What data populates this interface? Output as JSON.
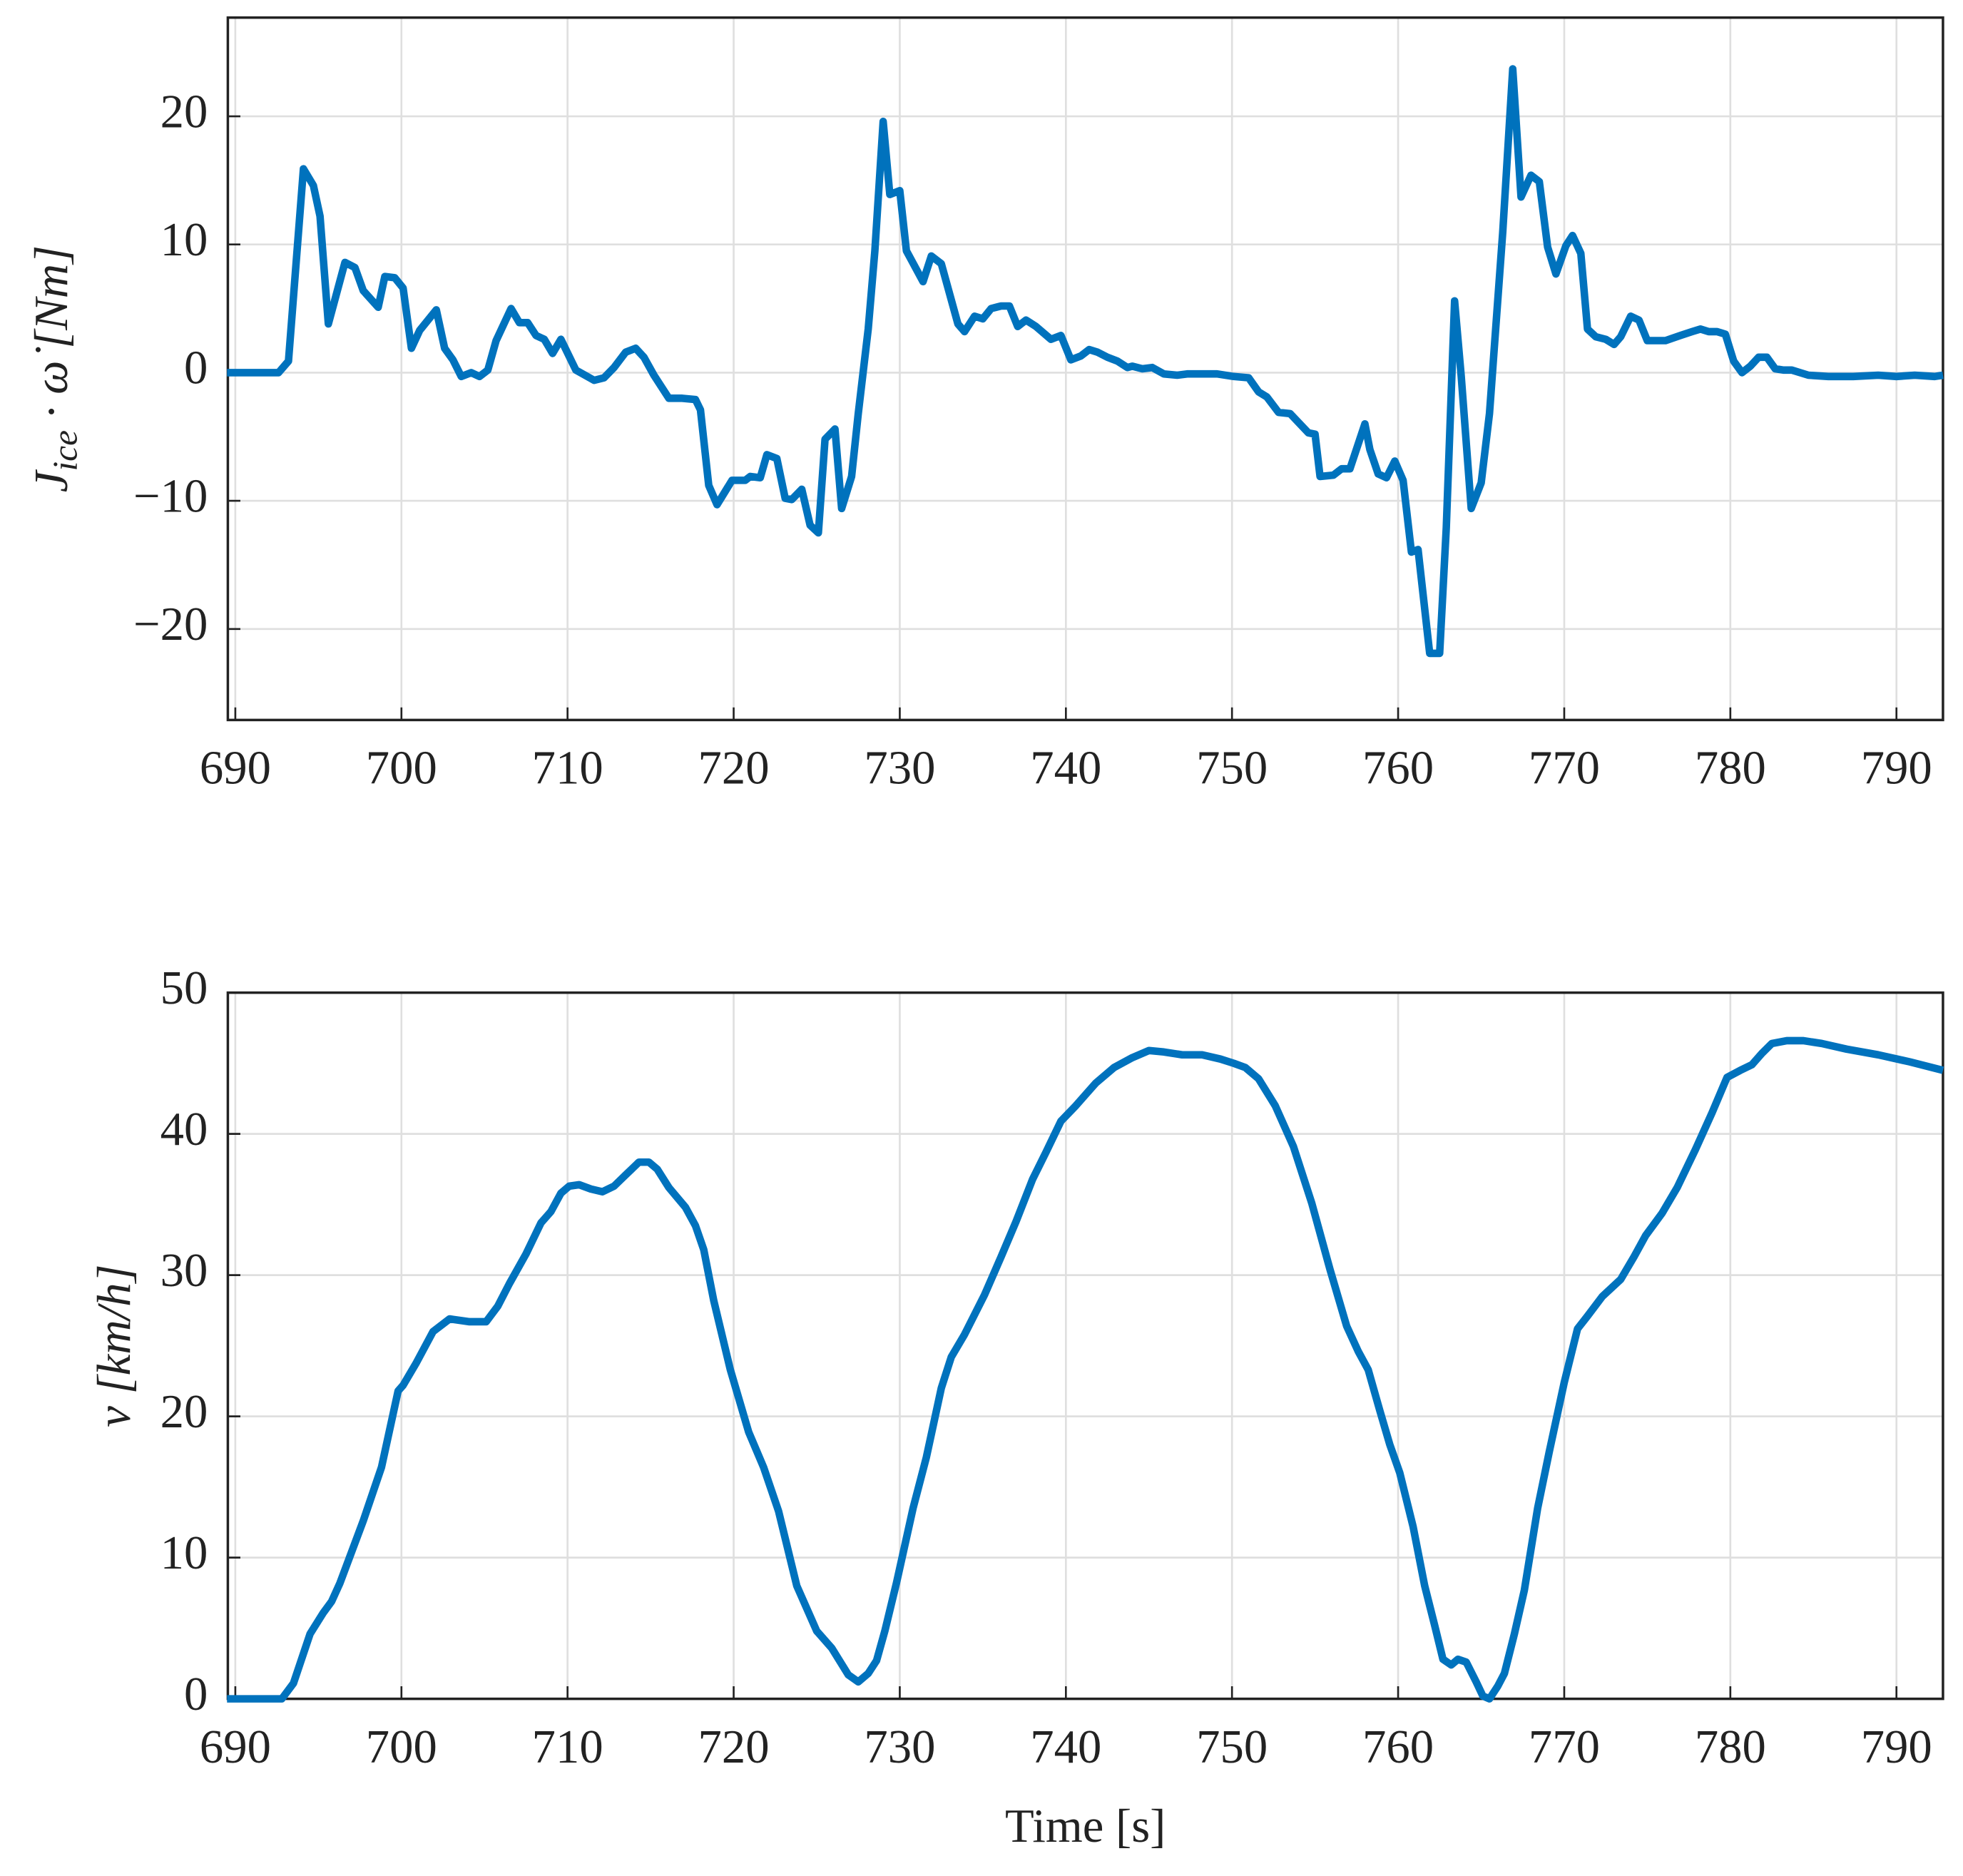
{
  "chart_data": [
    {
      "type": "line",
      "color": "#0072bd",
      "grid": true,
      "ylabel": [
        "J",
        "ice",
        " · ω̇ [Nm]"
      ],
      "xlim": [
        689.55,
        792.8
      ],
      "ylim": [
        -27.1,
        27.7
      ],
      "xticks": [
        690,
        700,
        710,
        720,
        730,
        740,
        750,
        760,
        770,
        780,
        790
      ],
      "yticks": [
        {
          "value": -20,
          "label": "−20"
        },
        {
          "value": -10,
          "label": "−10"
        },
        0,
        10,
        20
      ],
      "x": [
        689.5,
        692.6,
        693.2,
        694.1,
        694.7,
        695.1,
        695.6,
        696.6,
        697.2,
        697.7,
        698.6,
        699.0,
        699.6,
        700.1,
        700.6,
        701.1,
        702.1,
        702.6,
        703.1,
        703.6,
        704.2,
        704.7,
        705.2,
        705.7,
        706.6,
        707.1,
        707.6,
        708.1,
        708.6,
        709.1,
        709.6,
        710.5,
        711.6,
        712.2,
        712.8,
        713.5,
        714.1,
        714.6,
        715.2,
        716.1,
        716.9,
        717.7,
        718.0,
        718.5,
        719.0,
        719.9,
        720.7,
        721.0,
        721.6,
        722.0,
        722.6,
        723.1,
        723.5,
        724.1,
        724.6,
        725.1,
        725.5,
        726.1,
        726.5,
        727.1,
        727.5,
        728.1,
        728.5,
        729.0,
        729.4,
        730.0,
        730.4,
        731.4,
        731.9,
        732.5,
        733.5,
        733.9,
        734.5,
        735.0,
        735.5,
        736.1,
        736.6,
        737.1,
        737.6,
        738.2,
        739.1,
        739.7,
        740.3,
        740.9,
        741.4,
        741.9,
        742.5,
        743.1,
        743.7,
        744.0,
        744.6,
        745.2,
        745.9,
        746.7,
        747.3,
        748.2,
        749.1,
        750.1,
        751.0,
        751.6,
        752.1,
        752.8,
        753.5,
        754.6,
        755.0,
        755.3,
        756.1,
        756.6,
        757.1,
        758.0,
        758.3,
        758.8,
        759.3,
        759.8,
        760.3,
        760.8,
        761.2,
        761.9,
        762.5,
        762.9,
        763.4,
        763.8,
        764.4,
        765.0,
        765.5,
        766.3,
        766.9,
        767.4,
        768.0,
        768.5,
        769.0,
        769.5,
        770.1,
        770.5,
        771.0,
        771.4,
        771.9,
        772.5,
        773.0,
        773.4,
        774.0,
        774.5,
        775.0,
        776.1,
        777.0,
        777.7,
        778.2,
        778.7,
        779.2,
        779.7,
        780.2,
        780.7,
        781.2,
        781.7,
        782.2,
        782.7,
        783.2,
        783.7,
        784.7,
        785.9,
        787.4,
        788.9,
        790.0,
        791.1,
        792.3,
        792.8
      ],
      "values": [
        0,
        0,
        0.9,
        15.9,
        14.6,
        12.2,
        3.8,
        8.6,
        8.2,
        6.4,
        5.1,
        7.5,
        7.4,
        6.6,
        1.9,
        3.3,
        4.9,
        1.9,
        1.0,
        -0.3,
        0,
        -0.3,
        0.2,
        2.5,
        5.0,
        3.9,
        3.9,
        2.9,
        2.6,
        1.5,
        2.6,
        0.2,
        -0.6,
        -0.4,
        0.4,
        1.6,
        1.9,
        1.2,
        -0.2,
        -2.0,
        -2.0,
        -2.1,
        -2.9,
        -8.8,
        -10.3,
        -8.4,
        -8.4,
        -8.1,
        -8.2,
        -6.4,
        -6.7,
        -9.8,
        -9.9,
        -9.1,
        -11.9,
        -12.5,
        -5.2,
        -4.4,
        -10.6,
        -8.1,
        -3.2,
        3.4,
        9.5,
        19.6,
        13.9,
        14.2,
        9.5,
        7.1,
        9.1,
        8.5,
        3.8,
        3.2,
        4.4,
        4.2,
        5.0,
        5.2,
        5.2,
        3.6,
        4.1,
        3.6,
        2.6,
        2.9,
        1.0,
        1.3,
        1.8,
        1.6,
        1.2,
        0.9,
        0.4,
        0.5,
        0.3,
        0.4,
        -0.1,
        -0.2,
        -0.1,
        -0.1,
        -0.1,
        -0.3,
        -0.4,
        -1.5,
        -1.9,
        -3.1,
        -3.2,
        -4.7,
        -4.8,
        -8.1,
        -8.0,
        -7.5,
        -7.5,
        -4.0,
        -6.0,
        -7.9,
        -8.2,
        -6.9,
        -8.4,
        -14.0,
        -13.8,
        -21.9,
        -21.9,
        -12.1,
        5.6,
        -0.3,
        -10.6,
        -8.6,
        -3.2,
        11.0,
        23.7,
        13.7,
        15.4,
        14.9,
        9.8,
        7.7,
        9.9,
        10.7,
        9.3,
        3.4,
        2.8,
        2.6,
        2.2,
        2.8,
        4.4,
        4.1,
        2.5,
        2.5,
        2.9,
        3.2,
        3.4,
        3.2,
        3.2,
        3.0,
        0.9,
        0,
        0.5,
        1.2,
        1.2,
        0.3,
        0.2,
        0.2,
        -0.2,
        -0.3,
        -0.3,
        -0.2,
        -0.3,
        -0.2,
        -0.3,
        -0.2
      ]
    },
    {
      "type": "line",
      "color": "#0072bd",
      "grid": true,
      "ylabel": "v [km/h]",
      "xlabel": "Time [s]",
      "xlim": [
        689.55,
        792.8
      ],
      "ylim": [
        0,
        50
      ],
      "xticks": [
        690,
        700,
        710,
        720,
        730,
        740,
        750,
        760,
        770,
        780,
        790
      ],
      "yticks": [
        0,
        10,
        20,
        30,
        40,
        50
      ],
      "x": [
        689.5,
        692.8,
        693.5,
        694.5,
        695.3,
        695.8,
        696.3,
        697.7,
        698.8,
        699.8,
        700.1,
        700.9,
        701.9,
        702.9,
        704.1,
        705.1,
        705.8,
        706.5,
        707.5,
        708.4,
        709.0,
        709.6,
        710.1,
        710.7,
        711.4,
        712.1,
        712.8,
        713.5,
        714.3,
        714.9,
        715.4,
        716.1,
        717.1,
        717.7,
        718.2,
        718.8,
        719.8,
        720.9,
        721.8,
        722.7,
        723.8,
        725.0,
        725.9,
        726.9,
        727.5,
        728.1,
        728.6,
        729.1,
        729.8,
        730.8,
        731.6,
        732.5,
        733.1,
        733.9,
        735.1,
        736.1,
        737.0,
        738.0,
        738.8,
        739.7,
        740.6,
        741.8,
        742.9,
        744.0,
        745.0,
        745.9,
        747.0,
        748.2,
        749.3,
        750.1,
        750.8,
        751.6,
        752.6,
        753.7,
        754.8,
        755.9,
        756.9,
        757.6,
        758.2,
        758.9,
        759.5,
        760.1,
        760.9,
        761.6,
        762.2,
        762.7,
        763.2,
        763.6,
        764.1,
        764.7,
        765.1,
        765.5,
        766.0,
        766.4,
        767.0,
        767.6,
        768.4,
        769.1,
        770.0,
        770.8,
        771.4,
        772.3,
        773.4,
        774.2,
        774.9,
        775.9,
        776.8,
        777.9,
        778.9,
        779.8,
        780.6,
        781.3,
        781.9,
        782.5,
        783.4,
        784.4,
        785.5,
        787.0,
        788.9,
        790.8,
        792.8
      ],
      "values": [
        0,
        0,
        1.1,
        4.6,
        6.1,
        6.9,
        8.2,
        12.6,
        16.4,
        21.8,
        22.2,
        23.8,
        26.0,
        26.9,
        26.7,
        26.7,
        27.8,
        29.4,
        31.5,
        33.7,
        34.5,
        35.8,
        36.3,
        36.4,
        36.1,
        35.9,
        36.3,
        37.1,
        38.0,
        38.0,
        37.5,
        36.2,
        34.8,
        33.5,
        31.8,
        28.2,
        23.3,
        18.9,
        16.4,
        13.3,
        8.0,
        4.8,
        3.6,
        1.7,
        1.2,
        1.8,
        2.7,
        4.8,
        8.2,
        13.5,
        17.1,
        22.0,
        24.2,
        25.8,
        28.6,
        31.3,
        33.8,
        36.8,
        38.7,
        40.9,
        42.0,
        43.6,
        44.7,
        45.4,
        45.9,
        45.8,
        45.6,
        45.6,
        45.3,
        45.0,
        44.7,
        43.9,
        42.0,
        39.1,
        35.1,
        30.4,
        26.4,
        24.6,
        23.3,
        20.4,
        18.0,
        16.0,
        12.2,
        8.0,
        5.2,
        2.8,
        2.4,
        2.8,
        2.6,
        1.2,
        0.2,
        0,
        0.9,
        1.8,
        4.6,
        7.7,
        13.5,
        17.5,
        22.4,
        26.2,
        27.1,
        28.5,
        29.7,
        31.3,
        32.8,
        34.4,
        36.2,
        38.9,
        41.5,
        44.0,
        44.5,
        44.9,
        45.7,
        46.4,
        46.6,
        46.6,
        46.4,
        46.0,
        45.6,
        45.1,
        44.5
      ]
    }
  ]
}
